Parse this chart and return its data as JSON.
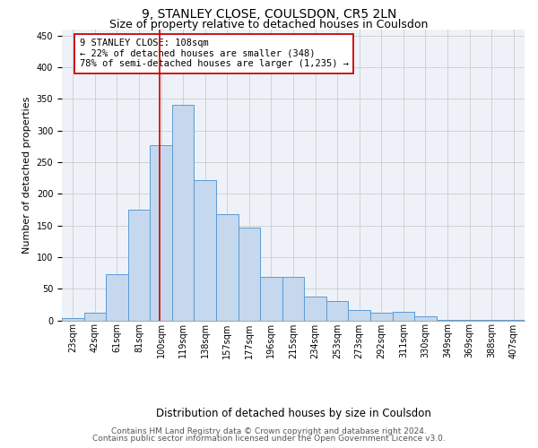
{
  "title": "9, STANLEY CLOSE, COULSDON, CR5 2LN",
  "subtitle": "Size of property relative to detached houses in Coulsdon",
  "xlabel": "Distribution of detached houses by size in Coulsdon",
  "ylabel": "Number of detached properties",
  "bin_labels": [
    "23sqm",
    "42sqm",
    "61sqm",
    "81sqm",
    "100sqm",
    "119sqm",
    "138sqm",
    "157sqm",
    "177sqm",
    "196sqm",
    "215sqm",
    "234sqm",
    "253sqm",
    "273sqm",
    "292sqm",
    "311sqm",
    "330sqm",
    "349sqm",
    "369sqm",
    "388sqm",
    "407sqm"
  ],
  "bar_values": [
    3,
    12,
    73,
    175,
    277,
    340,
    221,
    168,
    146,
    69,
    69,
    37,
    30,
    16,
    12,
    13,
    6,
    1,
    1,
    1,
    1
  ],
  "bar_color": "#c5d8ed",
  "bar_edge_color": "#5b9bd5",
  "property_size_bar_index": 4,
  "annotation_text": "9 STANLEY CLOSE: 108sqm\n← 22% of detached houses are smaller (348)\n78% of semi-detached houses are larger (1,235) →",
  "vline_color": "#cc0000",
  "annotation_box_edge": "#cc0000",
  "annotation_box_face": "#ffffff",
  "footer_line1": "Contains HM Land Registry data © Crown copyright and database right 2024.",
  "footer_line2": "Contains public sector information licensed under the Open Government Licence v3.0.",
  "ylim": [
    0,
    460
  ],
  "yticks": [
    0,
    50,
    100,
    150,
    200,
    250,
    300,
    350,
    400,
    450
  ],
  "title_fontsize": 10,
  "subtitle_fontsize": 9,
  "xlabel_fontsize": 8.5,
  "ylabel_fontsize": 8,
  "tick_fontsize": 7,
  "annotation_fontsize": 7.5,
  "footer_fontsize": 6.5
}
